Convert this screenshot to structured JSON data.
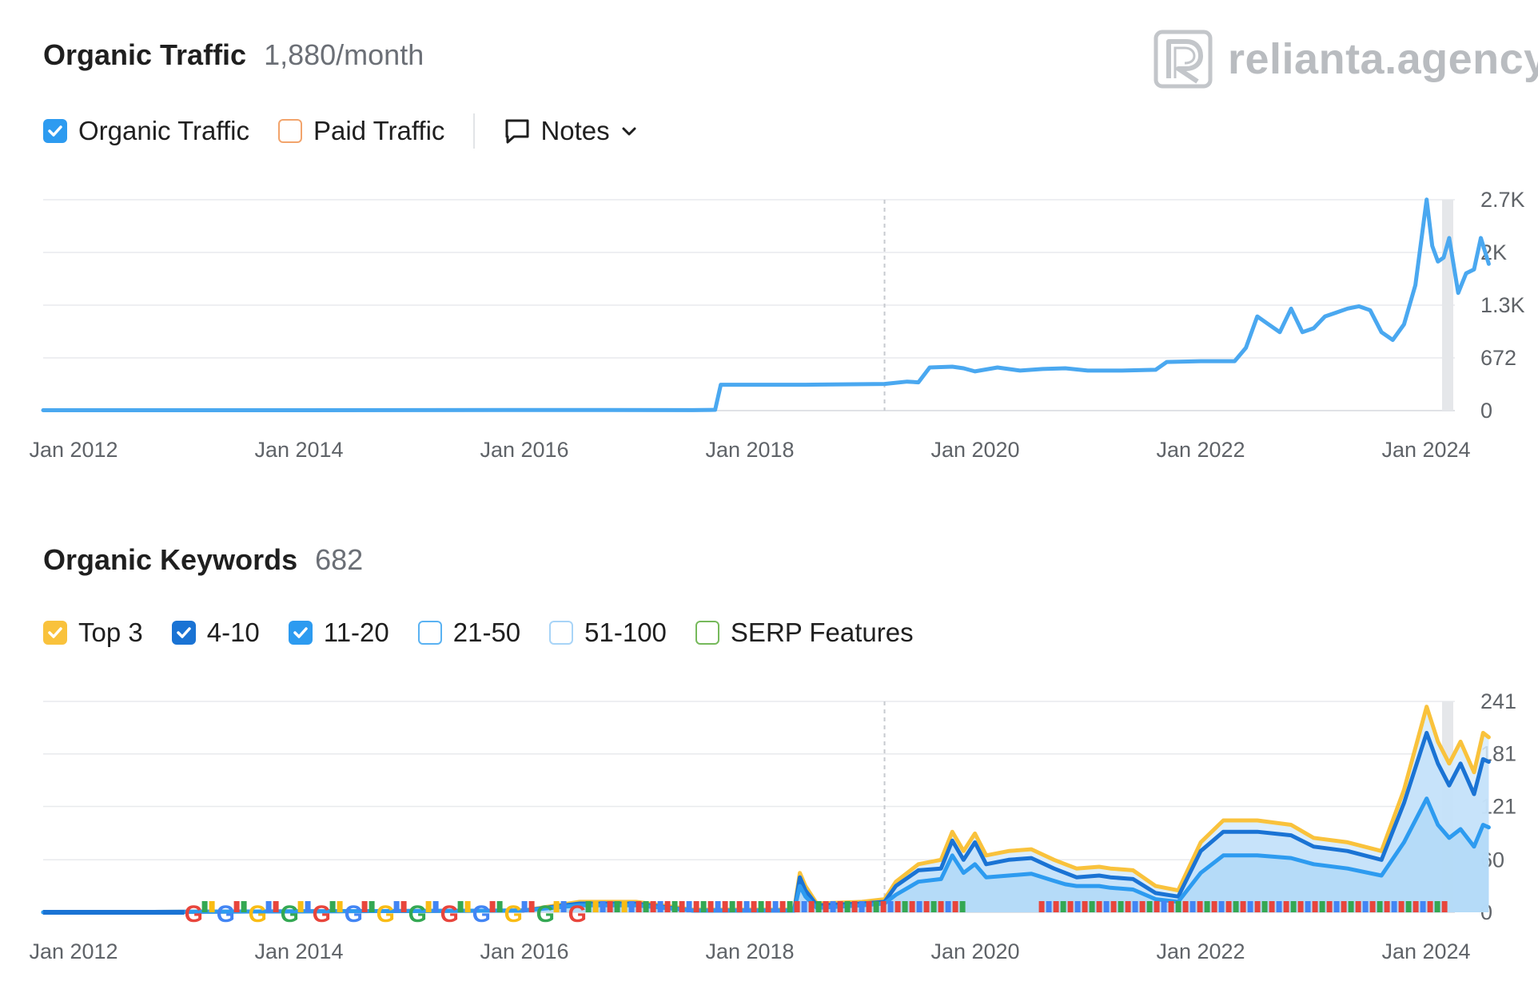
{
  "brand": {
    "name": "relianta.agency"
  },
  "traffic": {
    "title": "Organic Traffic",
    "value": "1,880/month",
    "legend": [
      {
        "label": "Organic Traffic",
        "checked": true,
        "color": "#2d9bf0"
      },
      {
        "label": "Paid Traffic",
        "checked": false,
        "color": "#f2a46c"
      }
    ],
    "notes_label": "Notes"
  },
  "keywords": {
    "title": "Organic Keywords",
    "value": "682",
    "legend": [
      {
        "label": "Top 3",
        "checked": true,
        "color": "#f9c23c"
      },
      {
        "label": "4-10",
        "checked": true,
        "color": "#1a73d4"
      },
      {
        "label": "11-20",
        "checked": true,
        "color": "#2d9bf0"
      },
      {
        "label": "21-50",
        "checked": false,
        "color": "#5ab2f2"
      },
      {
        "label": "51-100",
        "checked": false,
        "color": "#a8d4f7"
      },
      {
        "label": "SERP Features",
        "checked": false,
        "color": "#76b95b"
      }
    ]
  },
  "chart_data": [
    {
      "type": "line",
      "name": "organic-traffic",
      "x_tick_labels": [
        "Jan 2012",
        "Jan 2014",
        "Jan 2016",
        "Jan 2018",
        "Jan 2020",
        "Jan 2022",
        "Jan 2024"
      ],
      "y_tick_labels": [
        "0",
        "672",
        "1.3K",
        "2K",
        "2.7K"
      ],
      "y_tick_values": [
        0,
        672,
        1344,
        2016,
        2688
      ],
      "xlim": [
        2011.75,
        2024.25
      ],
      "ylim": [
        0,
        2688
      ],
      "vertical_marker_x": 2019.2,
      "grid": true,
      "series": [
        {
          "name": "Organic Traffic",
          "color": "#4aa8f0",
          "points": [
            [
              2011.75,
              5
            ],
            [
              2014.0,
              5
            ],
            [
              2016.0,
              8
            ],
            [
              2017.5,
              6
            ],
            [
              2017.7,
              10
            ],
            [
              2017.75,
              330
            ],
            [
              2018.5,
              330
            ],
            [
              2019.2,
              340
            ],
            [
              2019.4,
              370
            ],
            [
              2019.5,
              360
            ],
            [
              2019.6,
              550
            ],
            [
              2019.8,
              560
            ],
            [
              2019.9,
              540
            ],
            [
              2020.0,
              500
            ],
            [
              2020.2,
              550
            ],
            [
              2020.4,
              510
            ],
            [
              2020.6,
              530
            ],
            [
              2020.8,
              540
            ],
            [
              2021.0,
              510
            ],
            [
              2021.3,
              510
            ],
            [
              2021.6,
              520
            ],
            [
              2021.7,
              620
            ],
            [
              2022.0,
              630
            ],
            [
              2022.3,
              630
            ],
            [
              2022.4,
              800
            ],
            [
              2022.5,
              1200
            ],
            [
              2022.6,
              1100
            ],
            [
              2022.7,
              1000
            ],
            [
              2022.8,
              1300
            ],
            [
              2022.9,
              1000
            ],
            [
              2023.0,
              1050
            ],
            [
              2023.1,
              1200
            ],
            [
              2023.2,
              1250
            ],
            [
              2023.3,
              1300
            ],
            [
              2023.4,
              1330
            ],
            [
              2023.5,
              1280
            ],
            [
              2023.6,
              1000
            ],
            [
              2023.7,
              900
            ],
            [
              2023.8,
              1100
            ],
            [
              2023.9,
              1600
            ],
            [
              2024.0,
              2690
            ],
            [
              2024.05,
              2100
            ],
            [
              2024.1,
              1900
            ],
            [
              2024.15,
              1950
            ],
            [
              2024.2,
              2200
            ],
            [
              2024.28,
              1500
            ],
            [
              2024.35,
              1750
            ],
            [
              2024.42,
              1800
            ],
            [
              2024.48,
              2200
            ],
            [
              2024.55,
              1870
            ]
          ]
        }
      ]
    },
    {
      "type": "area",
      "name": "organic-keywords",
      "x_tick_labels": [
        "Jan 2012",
        "Jan 2014",
        "Jan 2016",
        "Jan 2018",
        "Jan 2020",
        "Jan 2022",
        "Jan 2024"
      ],
      "y_tick_labels": [
        "0",
        "60",
        "121",
        "181",
        "241"
      ],
      "y_tick_values": [
        0,
        60,
        121,
        181,
        241
      ],
      "xlim": [
        2011.75,
        2024.25
      ],
      "ylim": [
        0,
        241
      ],
      "vertical_marker_x": 2019.2,
      "grid": true,
      "stacked": true,
      "series": [
        {
          "name": "Top 3",
          "color": "#f9c23c",
          "points": [
            [
              2011.75,
              0
            ],
            [
              2016.0,
              2
            ],
            [
              2016.5,
              12
            ],
            [
              2017.0,
              12
            ],
            [
              2017.5,
              3
            ],
            [
              2018.4,
              3
            ],
            [
              2018.45,
              45
            ],
            [
              2018.5,
              30
            ],
            [
              2018.6,
              10
            ],
            [
              2019.0,
              12
            ],
            [
              2019.2,
              15
            ],
            [
              2019.3,
              35
            ],
            [
              2019.5,
              55
            ],
            [
              2019.7,
              60
            ],
            [
              2019.8,
              92
            ],
            [
              2019.9,
              70
            ],
            [
              2020.0,
              90
            ],
            [
              2020.1,
              65
            ],
            [
              2020.3,
              70
            ],
            [
              2020.5,
              72
            ],
            [
              2020.7,
              60
            ],
            [
              2020.8,
              55
            ],
            [
              2020.9,
              50
            ],
            [
              2021.1,
              52
            ],
            [
              2021.2,
              50
            ],
            [
              2021.4,
              48
            ],
            [
              2021.6,
              30
            ],
            [
              2021.8,
              25
            ],
            [
              2022.0,
              80
            ],
            [
              2022.2,
              105
            ],
            [
              2022.5,
              105
            ],
            [
              2022.8,
              100
            ],
            [
              2023.0,
              85
            ],
            [
              2023.3,
              80
            ],
            [
              2023.6,
              70
            ],
            [
              2023.8,
              140
            ],
            [
              2024.0,
              235
            ],
            [
              2024.1,
              195
            ],
            [
              2024.2,
              170
            ],
            [
              2024.3,
              195
            ],
            [
              2024.42,
              160
            ],
            [
              2024.5,
              205
            ],
            [
              2024.55,
              200
            ]
          ]
        },
        {
          "name": "4-10",
          "color": "#1a73d4",
          "points": [
            [
              2011.75,
              0
            ],
            [
              2016.0,
              2
            ],
            [
              2016.5,
              10
            ],
            [
              2017.0,
              10
            ],
            [
              2017.5,
              2
            ],
            [
              2018.4,
              2
            ],
            [
              2018.45,
              40
            ],
            [
              2018.5,
              25
            ],
            [
              2018.6,
              8
            ],
            [
              2019.0,
              10
            ],
            [
              2019.2,
              12
            ],
            [
              2019.3,
              30
            ],
            [
              2019.5,
              48
            ],
            [
              2019.7,
              50
            ],
            [
              2019.8,
              82
            ],
            [
              2019.9,
              60
            ],
            [
              2020.0,
              80
            ],
            [
              2020.1,
              55
            ],
            [
              2020.3,
              60
            ],
            [
              2020.5,
              62
            ],
            [
              2020.7,
              50
            ],
            [
              2020.8,
              45
            ],
            [
              2020.9,
              40
            ],
            [
              2021.1,
              42
            ],
            [
              2021.2,
              40
            ],
            [
              2021.4,
              38
            ],
            [
              2021.6,
              22
            ],
            [
              2021.8,
              18
            ],
            [
              2022.0,
              70
            ],
            [
              2022.2,
              92
            ],
            [
              2022.5,
              92
            ],
            [
              2022.8,
              88
            ],
            [
              2023.0,
              75
            ],
            [
              2023.3,
              70
            ],
            [
              2023.6,
              60
            ],
            [
              2023.8,
              125
            ],
            [
              2024.0,
              205
            ],
            [
              2024.1,
              170
            ],
            [
              2024.2,
              145
            ],
            [
              2024.3,
              170
            ],
            [
              2024.42,
              135
            ],
            [
              2024.5,
              175
            ],
            [
              2024.55,
              172
            ]
          ]
        },
        {
          "name": "11-20",
          "color": "#2d9bf0",
          "points": [
            [
              2011.75,
              0
            ],
            [
              2016.0,
              2
            ],
            [
              2016.5,
              8
            ],
            [
              2017.0,
              8
            ],
            [
              2017.5,
              2
            ],
            [
              2018.4,
              2
            ],
            [
              2018.45,
              30
            ],
            [
              2018.5,
              18
            ],
            [
              2018.6,
              5
            ],
            [
              2019.0,
              8
            ],
            [
              2019.2,
              10
            ],
            [
              2019.3,
              20
            ],
            [
              2019.5,
              35
            ],
            [
              2019.7,
              38
            ],
            [
              2019.8,
              65
            ],
            [
              2019.9,
              45
            ],
            [
              2020.0,
              55
            ],
            [
              2020.1,
              40
            ],
            [
              2020.3,
              42
            ],
            [
              2020.5,
              44
            ],
            [
              2020.7,
              36
            ],
            [
              2020.8,
              32
            ],
            [
              2020.9,
              30
            ],
            [
              2021.1,
              30
            ],
            [
              2021.2,
              28
            ],
            [
              2021.4,
              26
            ],
            [
              2021.6,
              15
            ],
            [
              2021.8,
              12
            ],
            [
              2022.0,
              45
            ],
            [
              2022.2,
              65
            ],
            [
              2022.5,
              65
            ],
            [
              2022.8,
              62
            ],
            [
              2023.0,
              55
            ],
            [
              2023.3,
              50
            ],
            [
              2023.6,
              42
            ],
            [
              2023.8,
              80
            ],
            [
              2024.0,
              130
            ],
            [
              2024.1,
              100
            ],
            [
              2024.2,
              85
            ],
            [
              2024.3,
              95
            ],
            [
              2024.42,
              75
            ],
            [
              2024.5,
              100
            ],
            [
              2024.55,
              97
            ]
          ]
        }
      ]
    }
  ]
}
